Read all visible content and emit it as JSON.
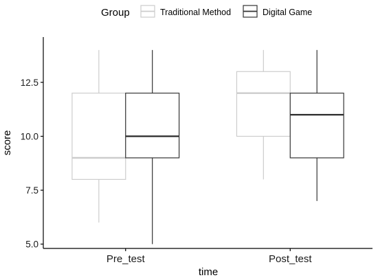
{
  "chart_data": {
    "type": "boxplot",
    "title": "",
    "xlabel": "time",
    "ylabel": "score",
    "ylim": [
      4.8,
      14.6
    ],
    "yticks": [
      5.0,
      7.5,
      10.0,
      12.5
    ],
    "ytick_labels": [
      "5.0",
      "7.5",
      "10.0",
      "12.5"
    ],
    "categories": [
      "Pre_test",
      "Post_test"
    ],
    "legend": {
      "title": "Group",
      "position": "top",
      "entries": [
        "Traditional Method",
        "Digital Game"
      ]
    },
    "series": [
      {
        "name": "Traditional Method",
        "color": "#cccccc",
        "median_color": "#cccccc",
        "boxes": [
          {
            "category": "Pre_test",
            "min": 6,
            "q1": 8,
            "median": 9,
            "q3": 12,
            "max": 14
          },
          {
            "category": "Post_test",
            "min": 8,
            "q1": 10,
            "median": 12,
            "q3": 13,
            "max": 14
          }
        ]
      },
      {
        "name": "Digital Game",
        "color": "#333333",
        "median_color": "#333333",
        "boxes": [
          {
            "category": "Pre_test",
            "min": 5,
            "q1": 9,
            "median": 10,
            "q3": 12,
            "max": 14
          },
          {
            "category": "Post_test",
            "min": 7,
            "q1": 9,
            "median": 11,
            "q3": 12,
            "max": 14
          }
        ]
      }
    ],
    "grid": false
  }
}
